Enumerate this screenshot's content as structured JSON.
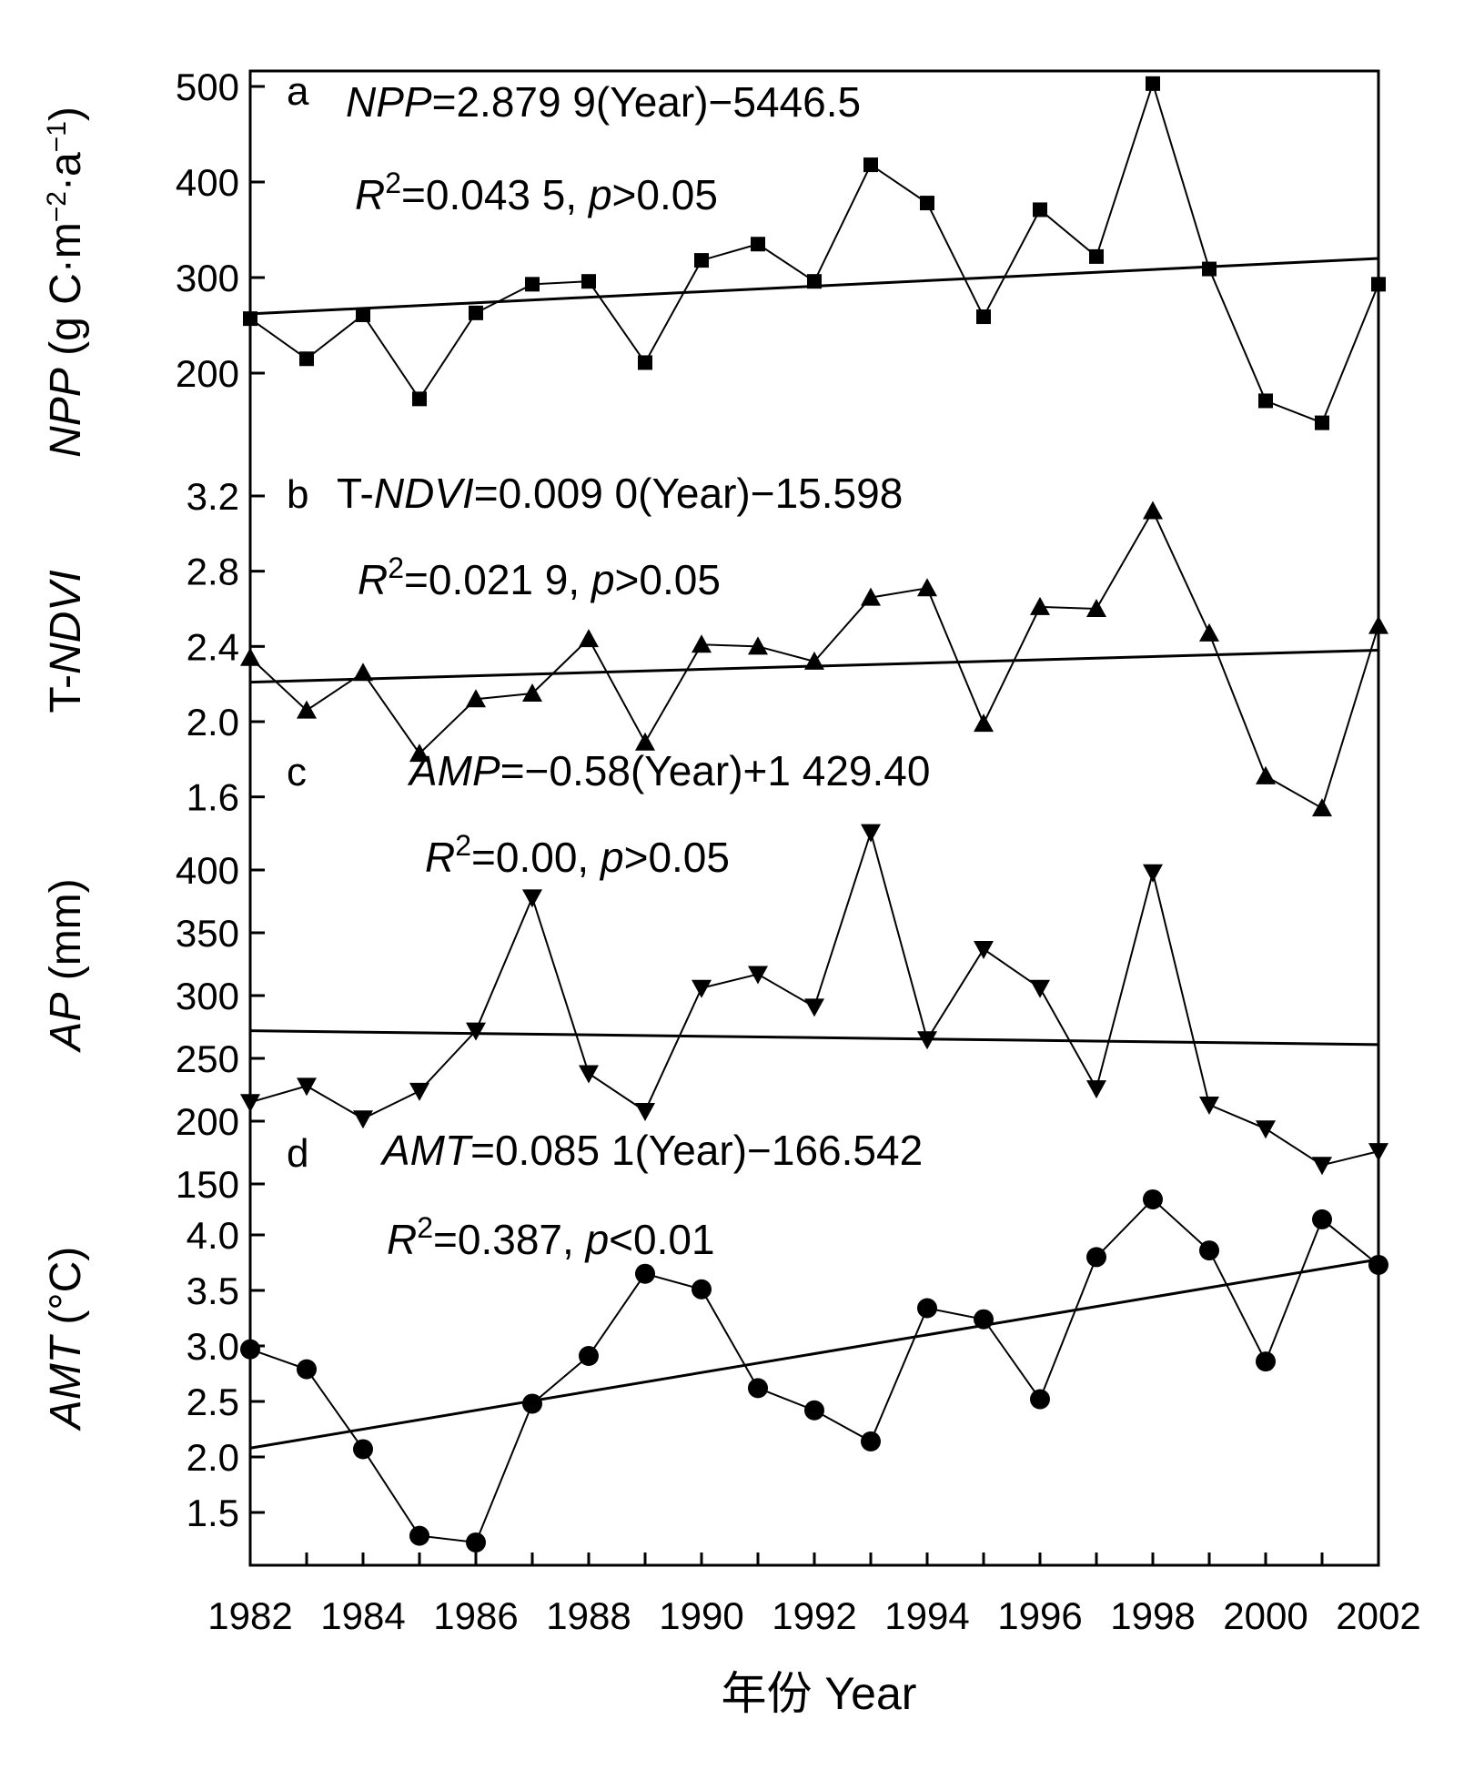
{
  "x_axis": {
    "label": "年份 Year",
    "ticks": [
      "1982",
      "1984",
      "1986",
      "1988",
      "1990",
      "1992",
      "1994",
      "1996",
      "1998",
      "2000",
      "2002"
    ]
  },
  "chart_data": [
    {
      "type": "line",
      "panel": "a",
      "marker": "square",
      "ylabel": {
        "var": "NPP",
        "unit": " (g C·m",
        "exp1": "−2",
        "mid": "·a",
        "exp2": "−1",
        "close": ")"
      },
      "ylim": [
        150,
        510
      ],
      "yticks": [
        "200",
        "300",
        "400",
        "500"
      ],
      "x": [
        1982,
        1983,
        1984,
        1985,
        1986,
        1987,
        1988,
        1989,
        1990,
        1991,
        1992,
        1993,
        1994,
        1995,
        1996,
        1997,
        1998,
        1999,
        2000,
        2001,
        2002
      ],
      "values": [
        257,
        215,
        261,
        173,
        263,
        293,
        296,
        211,
        318,
        335,
        296,
        418,
        378,
        259,
        371,
        322,
        503,
        309,
        171,
        148,
        293
      ],
      "trend": [
        262,
        320
      ],
      "equation": {
        "var": "NPP",
        "rest": "=2.879 9(Year)−5446.5"
      },
      "stats": {
        "r": "R",
        "exp": "2",
        "r2": "=0.043 5,  ",
        "p": "p",
        "pval": ">0.05"
      }
    },
    {
      "type": "line",
      "panel": "b",
      "marker": "triangle-up",
      "ylabel": {
        "pre": "T-",
        "var": "NDVI"
      },
      "ylim": [
        1.6,
        3.3
      ],
      "yticks": [
        "1.6",
        "2.0",
        "2.4",
        "2.8",
        "3.2"
      ],
      "x": [
        1982,
        1983,
        1984,
        1985,
        1986,
        1987,
        1988,
        1989,
        1990,
        1991,
        1992,
        1993,
        1994,
        1995,
        1996,
        1997,
        1998,
        1999,
        2000,
        2001,
        2002
      ],
      "values": [
        2.34,
        2.06,
        2.26,
        1.83,
        2.12,
        2.15,
        2.44,
        1.89,
        2.41,
        2.4,
        2.32,
        2.66,
        2.71,
        1.99,
        2.61,
        2.6,
        3.12,
        2.47,
        1.71,
        1.54,
        2.51
      ],
      "trend": [
        2.21,
        2.38
      ],
      "equation": {
        "pre": "T-",
        "var": "NDVI",
        "rest": "=0.009 0(Year)−15.598"
      },
      "stats": {
        "r": "R",
        "exp": "2",
        "r2": "=0.021 9,  ",
        "p": "p",
        "pval": ">0.05"
      }
    },
    {
      "type": "line",
      "panel": "c",
      "marker": "triangle-down",
      "ylabel": {
        "var": "AP",
        "unit": " (mm)"
      },
      "ylim": [
        150,
        435
      ],
      "yticks": [
        "150",
        "200",
        "250",
        "300",
        "350",
        "400"
      ],
      "x": [
        1982,
        1983,
        1984,
        1985,
        1986,
        1987,
        1988,
        1989,
        1990,
        1991,
        1992,
        1993,
        1994,
        1995,
        1996,
        1997,
        1998,
        1999,
        2000,
        2001,
        2002
      ],
      "values": [
        215,
        228,
        202,
        224,
        272,
        378,
        238,
        208,
        306,
        317,
        291,
        430,
        265,
        337,
        306,
        226,
        398,
        213,
        194,
        165,
        176
      ],
      "trend": [
        272,
        261
      ],
      "equation": {
        "var": "AMP",
        "rest": "=−0.58(Year)+1 429.40"
      },
      "stats": {
        "r": "R",
        "exp": "2",
        "r2": "=0.00,   ",
        "p": "p",
        "pval": ">0.05"
      }
    },
    {
      "type": "line",
      "panel": "d",
      "marker": "circle",
      "ylabel": {
        "var": "AMT",
        "unit": " (°C)"
      },
      "ylim": [
        1.0,
        4.5
      ],
      "yticks": [
        "1.5",
        "2.0",
        "2.5",
        "3.0",
        "3.5",
        "4.0"
      ],
      "x": [
        1982,
        1983,
        1984,
        1985,
        1986,
        1987,
        1988,
        1989,
        1990,
        1991,
        1992,
        1993,
        1994,
        1995,
        1996,
        1997,
        1998,
        1999,
        2000,
        2001,
        2002
      ],
      "values": [
        2.97,
        2.79,
        2.07,
        1.29,
        1.23,
        2.48,
        2.91,
        3.65,
        3.51,
        2.62,
        2.42,
        2.14,
        3.34,
        3.24,
        2.52,
        3.8,
        4.32,
        3.86,
        2.86,
        4.14,
        3.73
      ],
      "trend": [
        2.08,
        3.78
      ],
      "equation": {
        "var": "AMT",
        "rest": "=0.085 1(Year)−166.542"
      },
      "stats": {
        "r": "R",
        "exp": "2",
        "r2": "=0.387,  ",
        "p": "p",
        "pval": "<0.01"
      }
    }
  ]
}
